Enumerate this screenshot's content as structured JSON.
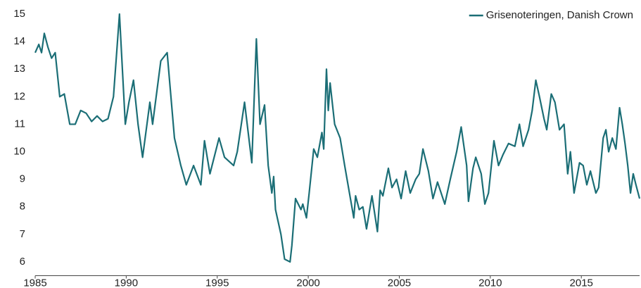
{
  "chart_data": {
    "type": "line",
    "legend_position": "upper right",
    "xlim": [
      1985,
      2018.2
    ],
    "xticks": [
      1985,
      1990,
      1995,
      2000,
      2005,
      2010,
      2015
    ],
    "ylim": [
      5.5,
      15.3
    ],
    "yticks": [
      6,
      7,
      8,
      9,
      10,
      11,
      12,
      13,
      14,
      15
    ],
    "x": [
      1985.0,
      1985.2,
      1985.35,
      1985.5,
      1985.7,
      1985.9,
      1986.1,
      1986.35,
      1986.6,
      1986.9,
      1987.2,
      1987.5,
      1987.8,
      1988.1,
      1988.4,
      1988.7,
      1989.0,
      1989.3,
      1989.63,
      1989.95,
      1990.15,
      1990.4,
      1990.65,
      1990.9,
      1991.3,
      1991.45,
      1991.9,
      1992.25,
      1992.65,
      1993.0,
      1993.3,
      1993.7,
      1994.1,
      1994.3,
      1994.6,
      1995.1,
      1995.4,
      1995.9,
      1996.1,
      1996.5,
      1996.9,
      1997.15,
      1997.35,
      1997.6,
      1997.8,
      1998.0,
      1998.1,
      1998.2,
      1998.5,
      1998.7,
      1999.0,
      1999.1,
      1999.3,
      1999.6,
      1999.7,
      1999.9,
      2000.05,
      2000.3,
      2000.5,
      2000.75,
      2000.85,
      2001.0,
      2001.1,
      2001.2,
      2001.45,
      2001.75,
      2002.0,
      2002.5,
      2002.6,
      2002.8,
      2003.0,
      2003.2,
      2003.5,
      2003.8,
      2003.95,
      2004.1,
      2004.4,
      2004.6,
      2004.85,
      2005.1,
      2005.35,
      2005.6,
      2005.9,
      2006.1,
      2006.3,
      2006.6,
      2006.85,
      2007.1,
      2007.5,
      2007.8,
      2008.15,
      2008.4,
      2008.7,
      2008.8,
      2009.05,
      2009.2,
      2009.5,
      2009.7,
      2009.9,
      2010.2,
      2010.45,
      2010.7,
      2011.0,
      2011.35,
      2011.6,
      2011.8,
      2012.1,
      2012.3,
      2012.5,
      2012.7,
      2012.95,
      2013.1,
      2013.35,
      2013.55,
      2013.8,
      2014.05,
      2014.25,
      2014.4,
      2014.6,
      2014.9,
      2015.1,
      2015.3,
      2015.5,
      2015.8,
      2015.95,
      2016.2,
      2016.35,
      2016.5,
      2016.7,
      2016.9,
      2017.1,
      2017.25,
      2017.4,
      2017.55,
      2017.7,
      2017.85,
      2018.0,
      2018.2
    ],
    "series": [
      {
        "name": "Grisenoteringen, Danish Crown",
        "color": "#1b6e76",
        "values": [
          13.6,
          13.9,
          13.6,
          14.3,
          13.8,
          13.4,
          13.6,
          12.0,
          12.1,
          11.0,
          11.0,
          11.5,
          11.4,
          11.1,
          11.3,
          11.1,
          11.2,
          12.0,
          15.0,
          11.0,
          11.8,
          12.6,
          11.0,
          9.8,
          11.8,
          11.0,
          13.3,
          13.6,
          10.5,
          9.5,
          8.8,
          9.5,
          8.8,
          10.4,
          9.2,
          10.5,
          9.8,
          9.5,
          10.0,
          11.8,
          9.6,
          14.1,
          11.0,
          11.7,
          9.5,
          8.5,
          9.1,
          7.9,
          7.0,
          6.1,
          6.0,
          6.6,
          8.3,
          7.9,
          8.1,
          7.6,
          8.5,
          10.1,
          9.8,
          10.7,
          10.1,
          13.0,
          11.5,
          12.5,
          11.0,
          10.5,
          9.5,
          7.6,
          8.4,
          7.9,
          8.0,
          7.2,
          8.4,
          7.1,
          8.6,
          8.4,
          9.4,
          8.7,
          9.0,
          8.3,
          9.3,
          8.5,
          9.0,
          9.2,
          10.1,
          9.3,
          8.3,
          8.9,
          8.1,
          9.0,
          10.0,
          10.9,
          9.5,
          8.2,
          9.4,
          9.8,
          9.2,
          8.1,
          8.5,
          10.4,
          9.5,
          9.9,
          10.3,
          10.2,
          11.0,
          10.2,
          10.8,
          11.5,
          12.6,
          12.0,
          11.2,
          10.8,
          12.1,
          11.8,
          10.8,
          11.0,
          9.2,
          10.0,
          8.5,
          9.6,
          9.5,
          8.8,
          9.3,
          8.5,
          8.7,
          10.5,
          10.8,
          10.0,
          10.5,
          10.1,
          11.6,
          11.0,
          10.3,
          9.5,
          8.5,
          9.2,
          8.8,
          8.3
        ]
      }
    ]
  }
}
